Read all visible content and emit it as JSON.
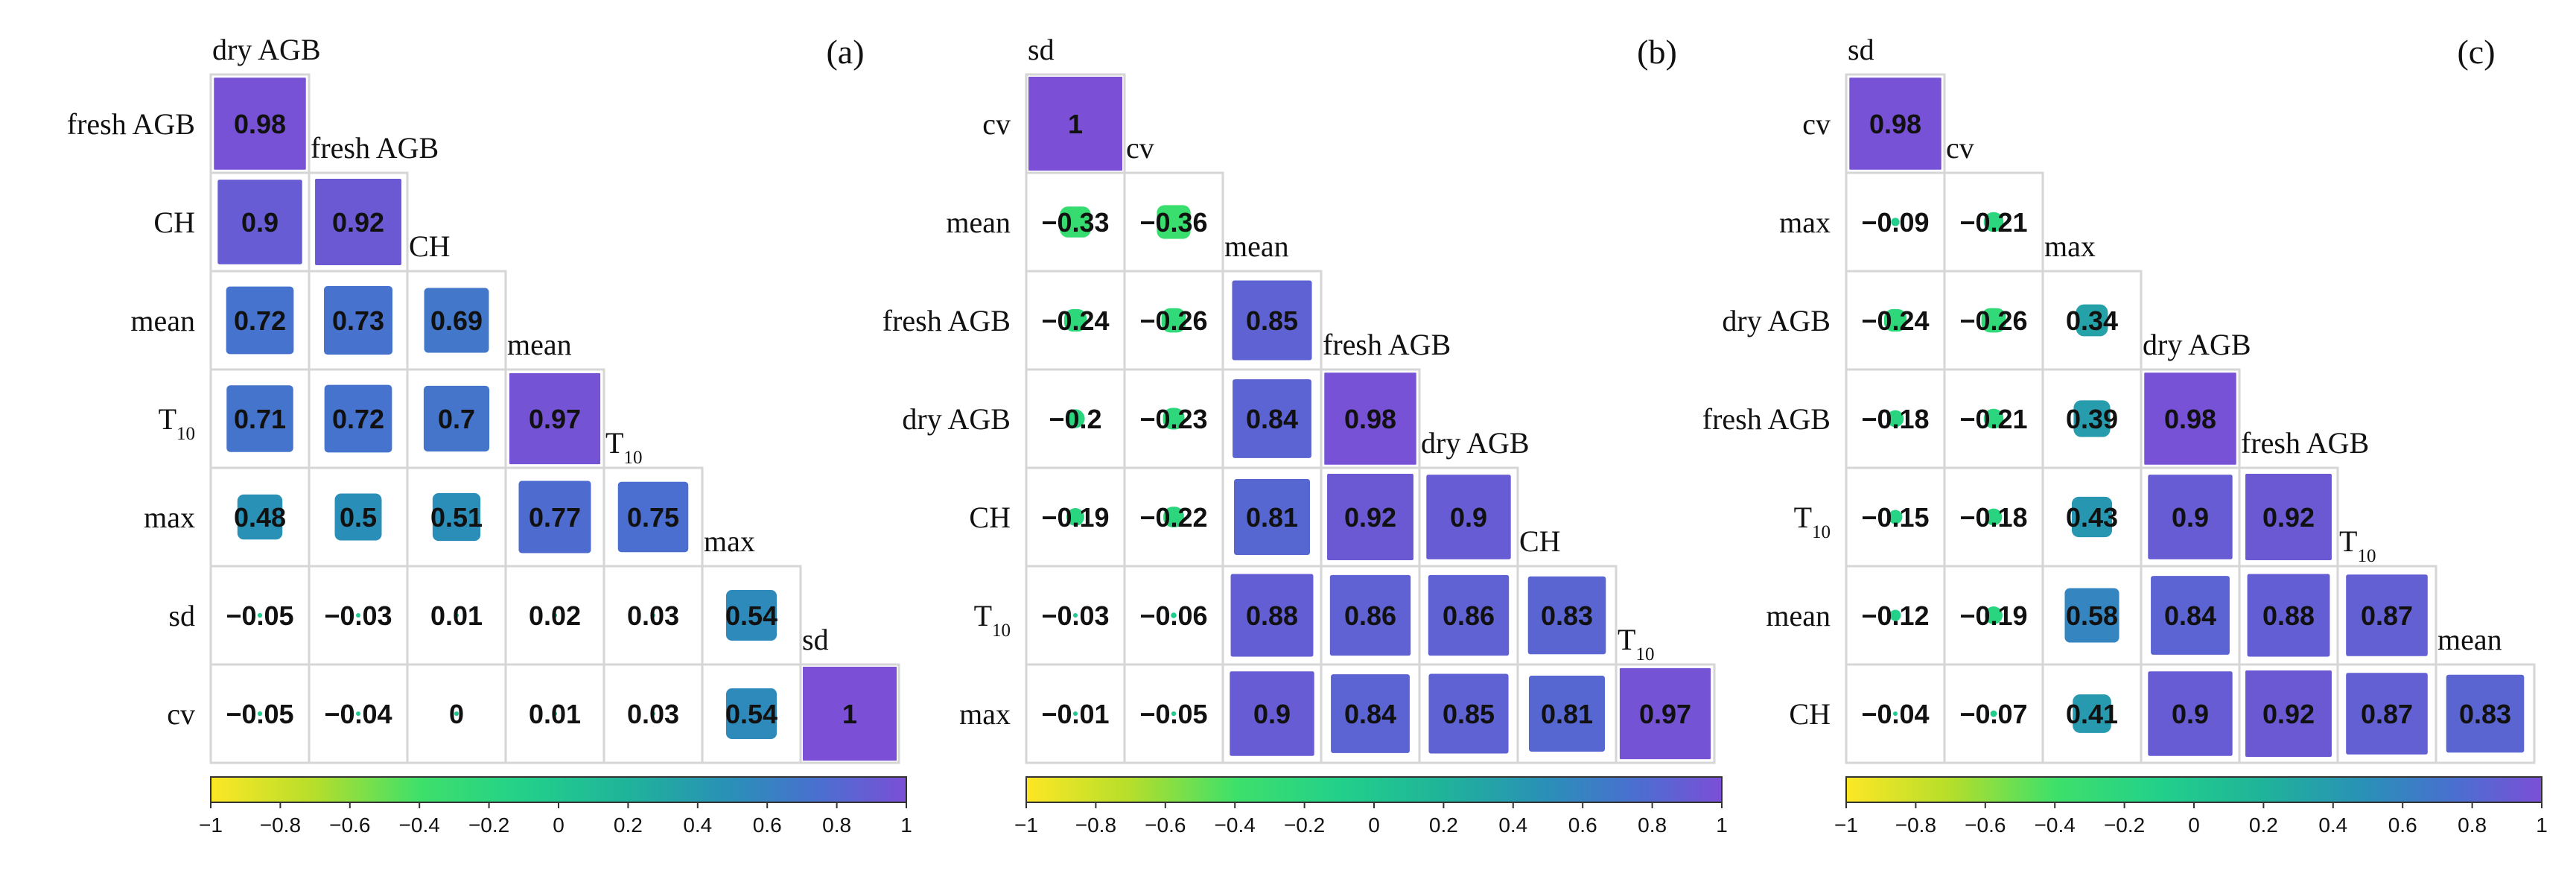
{
  "colorbar": {
    "ticks": [
      "−1",
      "−0.8",
      "−0.6",
      "−0.4",
      "−0.2",
      "0",
      "0.2",
      "0.4",
      "0.6",
      "0.8",
      "1"
    ],
    "tick_values": [
      -1,
      -0.8,
      -0.6,
      -0.4,
      -0.2,
      0,
      0.2,
      0.4,
      0.6,
      0.8,
      1
    ],
    "stops": [
      {
        "v": -1,
        "color": "#fde725"
      },
      {
        "v": -0.7,
        "color": "#b5de2b"
      },
      {
        "v": -0.4,
        "color": "#3ee06a"
      },
      {
        "v": -0.1,
        "color": "#22d08a"
      },
      {
        "v": 0.2,
        "color": "#1fb39a"
      },
      {
        "v": 0.5,
        "color": "#2a8fb8"
      },
      {
        "v": 0.75,
        "color": "#4a6fd0"
      },
      {
        "v": 1,
        "color": "#7b4fd6"
      }
    ]
  },
  "chart_data": [
    {
      "type": "heatmap",
      "title": "(a)",
      "variables": [
        "dry AGB",
        "fresh AGB",
        "CH",
        "mean",
        "T10",
        "max",
        "sd",
        "cv"
      ],
      "variable_labels": [
        {
          "base": "dry AGB",
          "sub": ""
        },
        {
          "base": "fresh AGB",
          "sub": ""
        },
        {
          "base": "CH",
          "sub": ""
        },
        {
          "base": "mean",
          "sub": ""
        },
        {
          "base": "T",
          "sub": "10"
        },
        {
          "base": "max",
          "sub": ""
        },
        {
          "base": "sd",
          "sub": ""
        },
        {
          "base": "cv",
          "sub": ""
        }
      ],
      "lower_triangle": [
        [
          0.98
        ],
        [
          0.9,
          0.92
        ],
        [
          0.72,
          0.73,
          0.69
        ],
        [
          0.71,
          0.72,
          0.7,
          0.97
        ],
        [
          0.48,
          0.5,
          0.51,
          0.77,
          0.75
        ],
        [
          -0.05,
          -0.03,
          0.01,
          0.02,
          0.03,
          0.54
        ],
        [
          -0.05,
          -0.04,
          0,
          0.01,
          0.03,
          0.54,
          1
        ]
      ],
      "value_labels": [
        [
          "0.98"
        ],
        [
          "0.9",
          "0.92"
        ],
        [
          "0.72",
          "0.73",
          "0.69"
        ],
        [
          "0.71",
          "0.72",
          "0.7",
          "0.97"
        ],
        [
          "0.48",
          "0.5",
          "0.51",
          "0.77",
          "0.75"
        ],
        [
          "−0.05",
          "−0.03",
          "0.01",
          "0.02",
          "0.03",
          "0.54"
        ],
        [
          "−0.05",
          "−0.04",
          "0",
          "0.01",
          "0.03",
          "0.54",
          "1"
        ]
      ],
      "color_range": [
        -1,
        1
      ]
    },
    {
      "type": "heatmap",
      "title": "(b)",
      "variables": [
        "sd",
        "cv",
        "mean",
        "fresh AGB",
        "dry AGB",
        "CH",
        "T10",
        "max"
      ],
      "variable_labels": [
        {
          "base": "sd",
          "sub": ""
        },
        {
          "base": "cv",
          "sub": ""
        },
        {
          "base": "mean",
          "sub": ""
        },
        {
          "base": "fresh AGB",
          "sub": ""
        },
        {
          "base": "dry AGB",
          "sub": ""
        },
        {
          "base": "CH",
          "sub": ""
        },
        {
          "base": "T",
          "sub": "10"
        },
        {
          "base": "max",
          "sub": ""
        }
      ],
      "lower_triangle": [
        [
          1
        ],
        [
          -0.33,
          -0.36
        ],
        [
          -0.24,
          -0.26,
          0.85
        ],
        [
          -0.2,
          -0.23,
          0.84,
          0.98
        ],
        [
          -0.19,
          -0.22,
          0.81,
          0.92,
          0.9
        ],
        [
          -0.03,
          -0.06,
          0.88,
          0.86,
          0.86,
          0.83
        ],
        [
          -0.01,
          -0.05,
          0.9,
          0.84,
          0.85,
          0.81,
          0.97
        ]
      ],
      "value_labels": [
        [
          "1"
        ],
        [
          "−0.33",
          "−0.36"
        ],
        [
          "−0.24",
          "−0.26",
          "0.85"
        ],
        [
          "−0.2",
          "−0.23",
          "0.84",
          "0.98"
        ],
        [
          "−0.19",
          "−0.22",
          "0.81",
          "0.92",
          "0.9"
        ],
        [
          "−0.03",
          "−0.06",
          "0.88",
          "0.86",
          "0.86",
          "0.83"
        ],
        [
          "−0.01",
          "−0.05",
          "0.9",
          "0.84",
          "0.85",
          "0.81",
          "0.97"
        ]
      ],
      "color_range": [
        -1,
        1
      ]
    },
    {
      "type": "heatmap",
      "title": "(c)",
      "variables": [
        "sd",
        "cv",
        "max",
        "dry AGB",
        "fresh AGB",
        "T10",
        "mean",
        "CH"
      ],
      "variable_labels": [
        {
          "base": "sd",
          "sub": ""
        },
        {
          "base": "cv",
          "sub": ""
        },
        {
          "base": "max",
          "sub": ""
        },
        {
          "base": "dry AGB",
          "sub": ""
        },
        {
          "base": "fresh AGB",
          "sub": ""
        },
        {
          "base": "T",
          "sub": "10"
        },
        {
          "base": "mean",
          "sub": ""
        },
        {
          "base": "CH",
          "sub": ""
        }
      ],
      "lower_triangle": [
        [
          0.98
        ],
        [
          -0.09,
          -0.21
        ],
        [
          -0.24,
          -0.26,
          0.34
        ],
        [
          -0.18,
          -0.21,
          0.39,
          0.98
        ],
        [
          -0.15,
          -0.18,
          0.43,
          0.9,
          0.92
        ],
        [
          -0.12,
          -0.19,
          0.58,
          0.84,
          0.88,
          0.87
        ],
        [
          -0.04,
          -0.07,
          0.41,
          0.9,
          0.92,
          0.87,
          0.83
        ]
      ],
      "value_labels": [
        [
          "0.98"
        ],
        [
          "−0.09",
          "−0.21"
        ],
        [
          "−0.24",
          "−0.26",
          "0.34"
        ],
        [
          "−0.18",
          "−0.21",
          "0.39",
          "0.98"
        ],
        [
          "−0.15",
          "−0.18",
          "0.43",
          "0.9",
          "0.92"
        ],
        [
          "−0.12",
          "−0.19",
          "0.58",
          "0.84",
          "0.88",
          "0.87"
        ],
        [
          "−0.04",
          "−0.07",
          "0.41",
          "0.9",
          "0.92",
          "0.87",
          "0.83"
        ]
      ],
      "color_range": [
        -1,
        1
      ]
    }
  ]
}
